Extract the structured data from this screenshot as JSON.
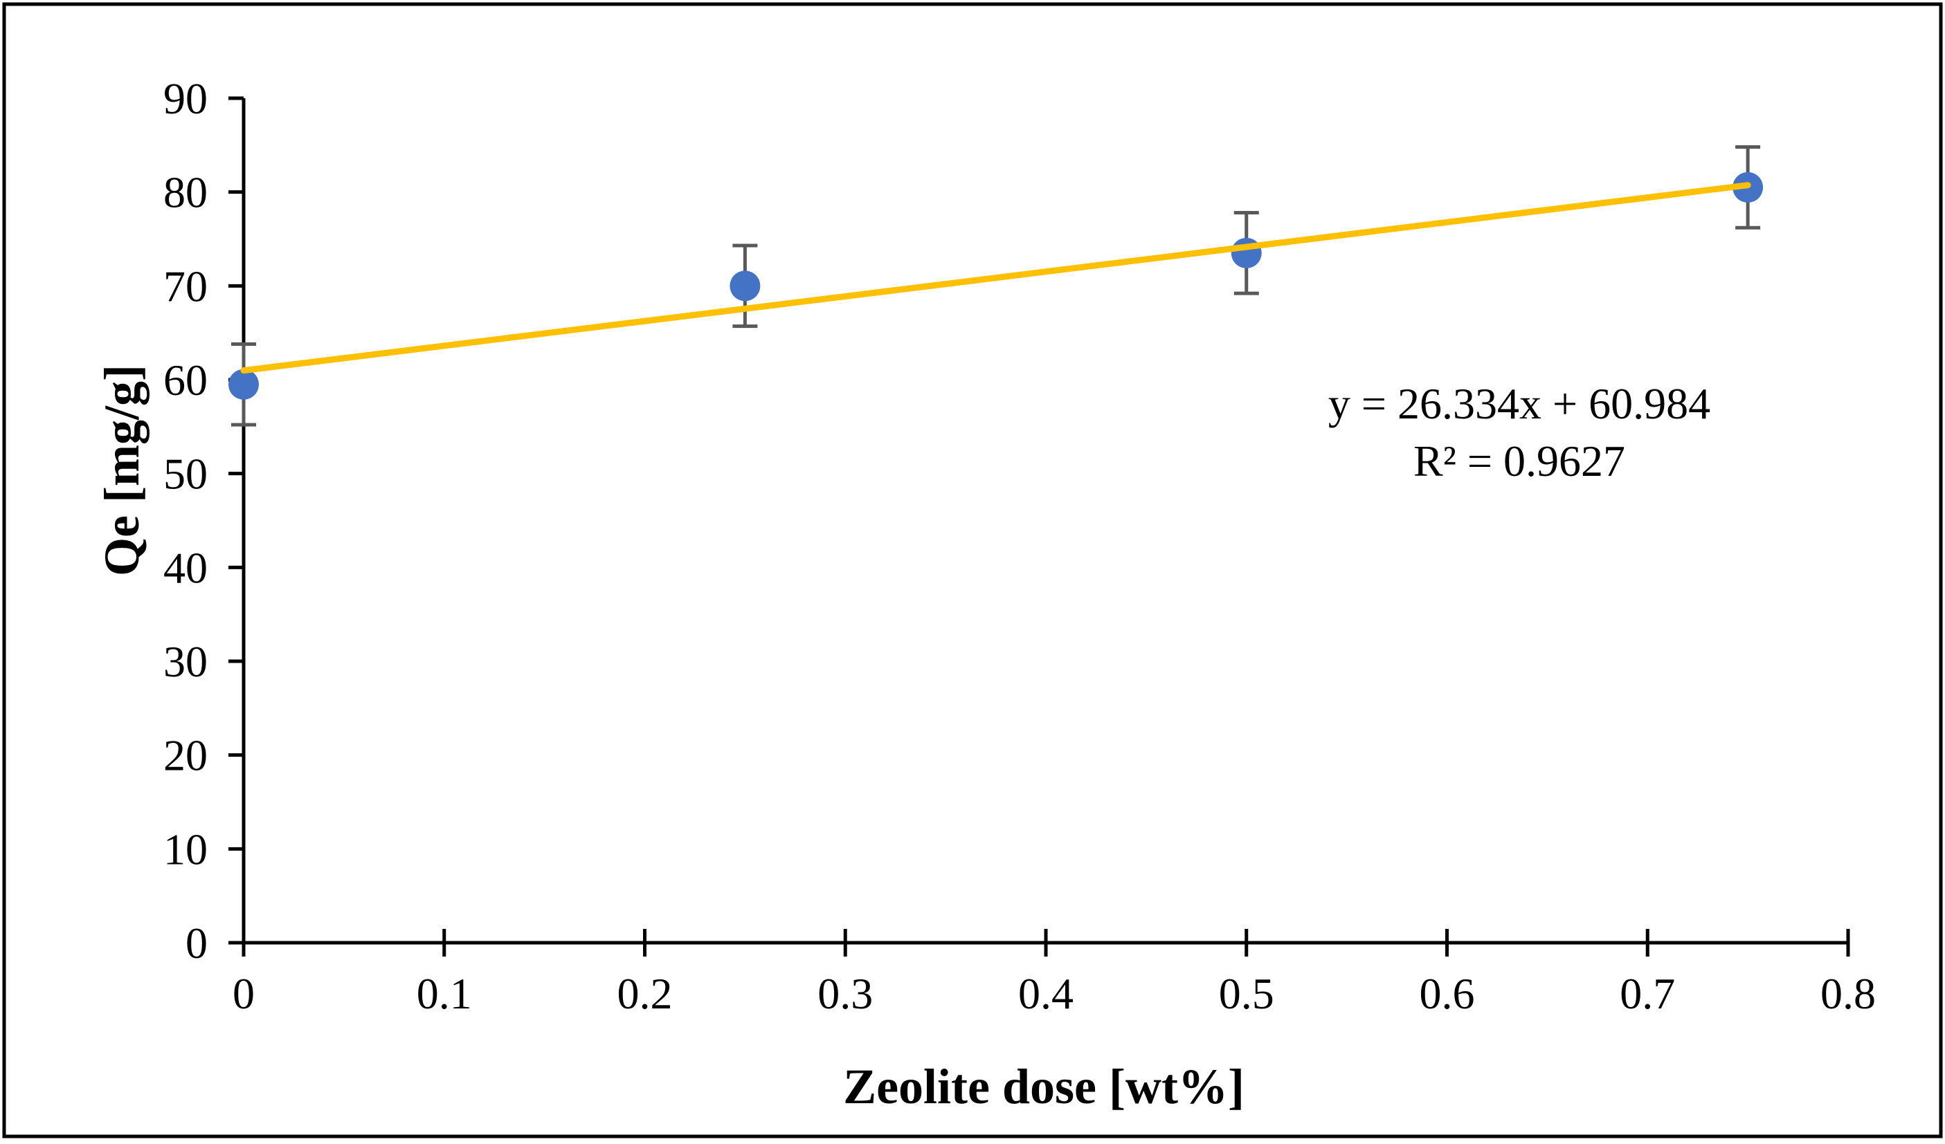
{
  "chart_data": {
    "type": "scatter",
    "title": "",
    "xlabel": "Zeolite dose [wt%]",
    "ylabel": "Qe [mg/g]",
    "xlim": [
      0,
      0.8
    ],
    "ylim": [
      0,
      90
    ],
    "x_ticks": [
      0,
      0.1,
      0.2,
      0.3,
      0.4,
      0.5,
      0.6,
      0.7,
      0.8
    ],
    "x_tick_labels": [
      "0",
      "0.1",
      "0.2",
      "0.3",
      "0.4",
      "0.5",
      "0.6",
      "0.7",
      "0.8"
    ],
    "y_ticks": [
      0,
      10,
      20,
      30,
      40,
      50,
      60,
      70,
      80,
      90
    ],
    "y_tick_labels": [
      "0",
      "10",
      "20",
      "30",
      "40",
      "50",
      "60",
      "70",
      "80",
      "90"
    ],
    "grid": false,
    "legend": "none",
    "series": [
      {
        "name": "Qe",
        "x": [
          0,
          0.25,
          0.5,
          0.75
        ],
        "y": [
          59.5,
          70.0,
          73.5,
          80.5
        ],
        "error": [
          4.3,
          4.3,
          4.3,
          4.3
        ],
        "marker_color": "#4472C4",
        "error_color": "#595959"
      }
    ],
    "trendline": {
      "slope": 26.334,
      "intercept": 60.984,
      "x_range": [
        0,
        0.75
      ],
      "color": "#FFC000",
      "equation": "y = 26.334x + 60.984",
      "r_squared": "R² = 0.9627"
    }
  }
}
